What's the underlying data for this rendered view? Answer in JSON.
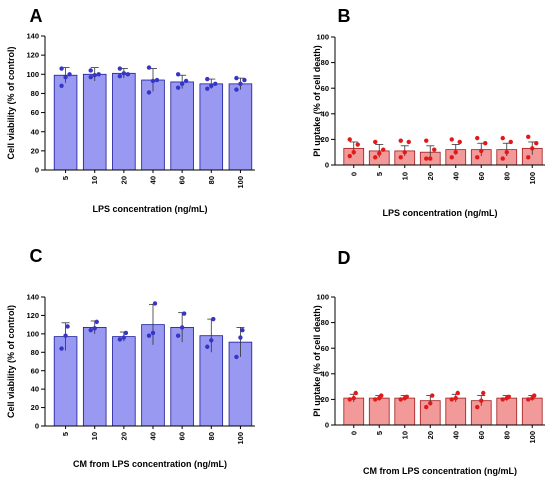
{
  "chart_data": [
    {
      "letter": "A",
      "type": "bar",
      "ylabel": "Cell viability (% of control)",
      "xlabel": "LPS concentration (ng/mL)",
      "ylim": [
        0,
        140
      ],
      "yticks": [
        0,
        20,
        40,
        60,
        80,
        100,
        120,
        140
      ],
      "categories": [
        "5",
        "10",
        "20",
        "40",
        "60",
        "80",
        "100"
      ],
      "values": [
        99,
        100,
        101,
        94,
        92,
        90,
        90
      ],
      "errors": [
        8,
        7,
        5,
        12,
        7,
        5,
        6
      ],
      "points": [
        [
          106,
          100,
          97,
          88
        ],
        [
          104,
          100,
          99,
          97
        ],
        [
          106,
          100,
          101,
          98
        ],
        [
          107,
          94,
          93,
          81
        ],
        [
          100,
          93,
          90,
          86
        ],
        [
          95,
          90,
          88,
          85
        ],
        [
          96,
          94,
          90,
          84
        ]
      ],
      "bar_fill": "#9999f2",
      "bar_stroke": "#1a1a99",
      "point_color": "#3535c8"
    },
    {
      "letter": "B",
      "type": "bar",
      "ylabel": "PI uptake (% of cell death)",
      "xlabel": "LPS concentration (ng/mL)",
      "ylim": [
        0,
        100
      ],
      "yticks": [
        0,
        20,
        40,
        60,
        80,
        100
      ],
      "categories": [
        "0",
        "5",
        "10",
        "20",
        "40",
        "60",
        "80",
        "100"
      ],
      "values": [
        13,
        11,
        11,
        10,
        12,
        12,
        12,
        13
      ],
      "errors": [
        5,
        5,
        4,
        5,
        4,
        5,
        5,
        5
      ],
      "points": [
        [
          20,
          16,
          10,
          7
        ],
        [
          18,
          12,
          9,
          6
        ],
        [
          19,
          18,
          10,
          6
        ],
        [
          19,
          12,
          5,
          5
        ],
        [
          20,
          18,
          10,
          6
        ],
        [
          21,
          17,
          11,
          6
        ],
        [
          21,
          18,
          10,
          5
        ],
        [
          22,
          17,
          13,
          6
        ]
      ],
      "bar_fill": "#f29999",
      "bar_stroke": "#a11a1a",
      "point_color": "#e01a1a"
    },
    {
      "letter": "C",
      "type": "bar",
      "ylabel": "Cell viability (% of control)",
      "xlabel": "CM from LPS concentration (ng/mL)",
      "ylim": [
        0,
        140
      ],
      "yticks": [
        0,
        20,
        40,
        60,
        80,
        100,
        120,
        140
      ],
      "categories": [
        "5",
        "10",
        "20",
        "40",
        "60",
        "80",
        "100"
      ],
      "values": [
        97,
        107,
        97,
        110,
        107,
        98,
        91
      ],
      "errors": [
        15,
        7,
        5,
        22,
        16,
        18,
        16
      ],
      "points": [
        [
          108,
          98,
          84
        ],
        [
          113,
          106,
          104
        ],
        [
          101,
          96,
          94
        ],
        [
          133,
          101,
          98
        ],
        [
          122,
          107,
          98
        ],
        [
          116,
          93,
          86
        ],
        [
          104,
          96,
          75
        ]
      ],
      "bar_fill": "#9999f2",
      "bar_stroke": "#1a1a99",
      "point_color": "#3535c8"
    },
    {
      "letter": "D",
      "type": "bar",
      "ylabel": "PI uptake (% of cell death)",
      "xlabel": "CM from LPS concentration (ng/mL)",
      "ylim": [
        0,
        100
      ],
      "yticks": [
        0,
        20,
        40,
        60,
        80,
        100
      ],
      "categories": [
        "0",
        "5",
        "10",
        "20",
        "40",
        "60",
        "80",
        "100"
      ],
      "values": [
        21,
        21,
        21,
        19,
        21,
        19,
        21,
        21
      ],
      "errors": [
        3,
        2,
        2,
        4,
        3,
        4,
        2,
        2
      ],
      "points": [
        [
          25,
          21,
          20
        ],
        [
          23,
          21,
          20
        ],
        [
          22,
          21,
          20
        ],
        [
          23,
          17,
          14
        ],
        [
          25,
          21,
          20
        ],
        [
          25,
          19,
          14
        ],
        [
          22,
          21,
          20
        ],
        [
          23,
          21,
          20
        ]
      ],
      "bar_fill": "#f29999",
      "bar_stroke": "#a11a1a",
      "point_color": "#e01a1a"
    }
  ]
}
